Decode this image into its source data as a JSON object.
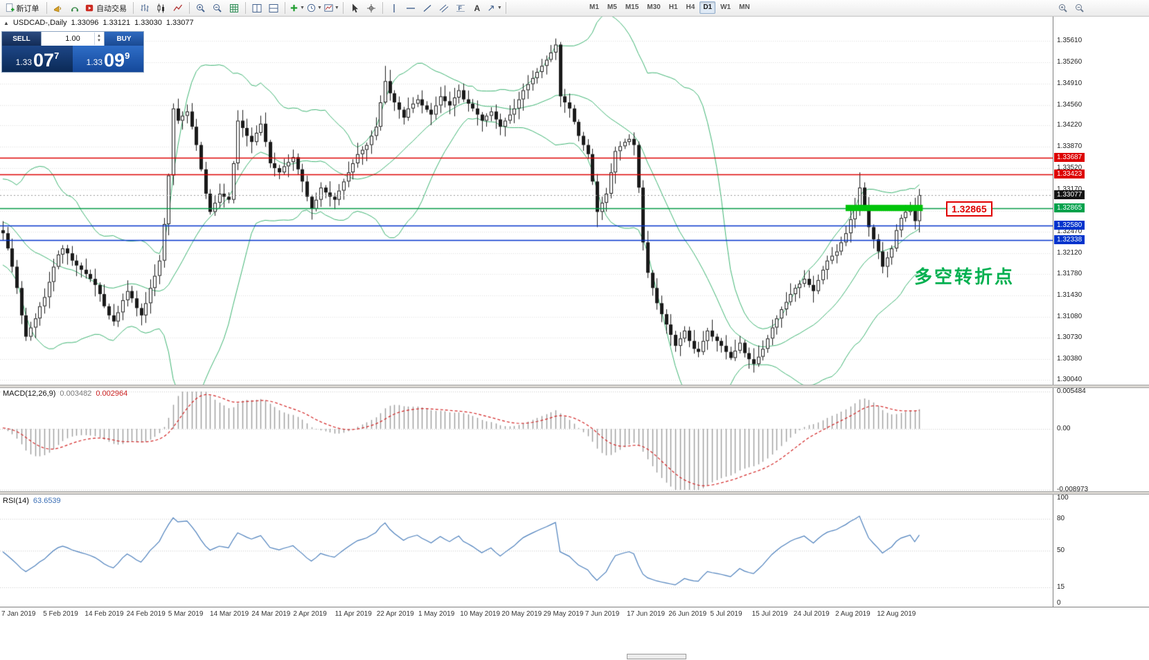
{
  "toolbar": {
    "new_order": "新订单",
    "autotrade": "自动交易",
    "timeframes": [
      "M1",
      "M5",
      "M15",
      "M30",
      "H1",
      "H4",
      "D1",
      "W1",
      "MN"
    ],
    "active_timeframe": "D1",
    "icon_names": [
      "new-order-icon",
      "megaphone-icon",
      "headset-icon",
      "autotrade-icon",
      "chart-bars-icon",
      "chart-candles-icon",
      "chart-line-icon",
      "zoom-in-icon",
      "zoom-out-icon",
      "grid-icon",
      "tile-horizontal-icon",
      "tile-vertical-icon",
      "add-indicator-icon",
      "periods-icon",
      "templates-icon",
      "cursor-icon",
      "crosshair-icon",
      "vertical-line-icon",
      "horizontal-line-icon",
      "trendline-icon",
      "channel-icon",
      "fibonacci-icon",
      "text-tool-icon",
      "arrows-tool-icon",
      "chart-zoom-in-icon",
      "chart-zoom-out-icon"
    ]
  },
  "chart": {
    "symbol_title": "USDCAD-,Daily",
    "open": "1.33096",
    "high": "1.33121",
    "low": "1.33030",
    "close": "1.33077"
  },
  "trade_panel": {
    "sell_label": "SELL",
    "buy_label": "BUY",
    "volume": "1.00",
    "sell_price_prefix": "1.33",
    "sell_price_big": "07",
    "sell_price_sup": "7",
    "buy_price_prefix": "1.33",
    "buy_price_big": "09",
    "buy_price_sup": "9"
  },
  "price_axis": {
    "gridline_labels": [
      "1.35610",
      "1.35260",
      "1.34910",
      "1.34560",
      "1.34220",
      "1.33870",
      "1.33520",
      "1.33170",
      "1.32820",
      "1.32470",
      "1.32120",
      "1.31780",
      "1.31430",
      "1.31080",
      "1.30730",
      "1.30380",
      "1.30040"
    ],
    "tags": [
      {
        "text": "1.33687",
        "bg": "#dd0000"
      },
      {
        "text": "1.33423",
        "bg": "#dd0000"
      },
      {
        "text": "1.33077",
        "bg": "#141414"
      },
      {
        "text": "1.32865",
        "bg": "#00a14b"
      },
      {
        "text": "1.32580",
        "bg": "#0033cc"
      },
      {
        "text": "1.32338",
        "bg": "#0033cc"
      }
    ]
  },
  "macd_panel": {
    "title": "MACD(12,26,9)",
    "main_value": "0.003482",
    "signal_value": "0.002964",
    "axis_labels": [
      "0.005484",
      "0.00",
      "-0.008973"
    ]
  },
  "rsi_panel": {
    "title": "RSI(14)",
    "value": "63.6539",
    "axis_labels": [
      "100",
      "80",
      "50",
      "15",
      "0"
    ]
  },
  "time_axis": {
    "labels": [
      "7 Jan 2019",
      "5 Feb 2019",
      "14 Feb 2019",
      "24 Feb 2019",
      "5 Mar 2019",
      "14 Mar 2019",
      "24 Mar 2019",
      "2 Apr 2019",
      "11 Apr 2019",
      "22 Apr 2019",
      "1 May 2019",
      "10 May 2019",
      "20 May 2019",
      "29 May 2019",
      "7 Jun 2019",
      "17 Jun 2019",
      "26 Jun 2019",
      "5 Jul 2019",
      "15 Jul 2019",
      "24 Jul 2019",
      "2 Aug 2019",
      "12 Aug 2019"
    ]
  },
  "annotations": {
    "turning_point": "多空转折点",
    "level_label": "1.32865"
  },
  "chart_data": {
    "type": "candlestick",
    "symbol": "USDCAD",
    "timeframe": "Daily",
    "visible_range": {
      "start": "7 Jan 2019",
      "end": "12 Aug 2019"
    },
    "price_axis_range": {
      "top": 1.3601,
      "bottom": 1.2995
    },
    "prehistory_closes": [
      1.325,
      1.328,
      1.331,
      1.333,
      1.33,
      1.327,
      1.324,
      1.321,
      1.319,
      1.322,
      1.325,
      1.3285,
      1.3315,
      1.329,
      1.326,
      1.323,
      1.3255,
      1.328,
      1.326,
      1.325
    ],
    "closes": [
      1.3245,
      1.322,
      1.319,
      1.3155,
      1.311,
      1.3075,
      1.309,
      1.3105,
      1.3125,
      1.314,
      1.3165,
      1.319,
      1.321,
      1.322,
      1.3212,
      1.32,
      1.3192,
      1.3185,
      1.3178,
      1.317,
      1.316,
      1.3145,
      1.3125,
      1.311,
      1.31,
      1.3115,
      1.3135,
      1.315,
      1.3138,
      1.3122,
      1.311,
      1.313,
      1.3155,
      1.3175,
      1.32,
      1.326,
      1.334,
      1.345,
      1.343,
      1.3438,
      1.3445,
      1.342,
      1.339,
      1.335,
      1.331,
      1.328,
      1.3295,
      1.331,
      1.3305,
      1.33,
      1.336,
      1.343,
      1.3418,
      1.3405,
      1.3395,
      1.341,
      1.3425,
      1.3395,
      1.336,
      1.3352,
      1.3345,
      1.3355,
      1.3362,
      1.337,
      1.335,
      1.333,
      1.3305,
      1.3285,
      1.33,
      1.332,
      1.3312,
      1.3305,
      1.33,
      1.3315,
      1.333,
      1.3345,
      1.336,
      1.3375,
      1.3382,
      1.339,
      1.3405,
      1.342,
      1.346,
      1.3495,
      1.3475,
      1.346,
      1.3448,
      1.3435,
      1.345,
      1.3458,
      1.3465,
      1.3455,
      1.3448,
      1.344,
      1.3455,
      1.347,
      1.3462,
      1.3455,
      1.3468,
      1.348,
      1.3465,
      1.3458,
      1.345,
      1.344,
      1.343,
      1.3438,
      1.3445,
      1.3432,
      1.342,
      1.343,
      1.344,
      1.345,
      1.3465,
      1.348,
      1.349,
      1.35,
      1.351,
      1.352,
      1.353,
      1.3542,
      1.3555,
      1.347,
      1.346,
      1.345,
      1.3428,
      1.3405,
      1.339,
      1.3375,
      1.333,
      1.328,
      1.3295,
      1.331,
      1.3345,
      1.338,
      1.3388,
      1.3395,
      1.34,
      1.339,
      1.332,
      1.323,
      1.318,
      1.3155,
      1.313,
      1.3112,
      1.3095,
      1.3078,
      1.306,
      1.3072,
      1.3085,
      1.3068,
      1.3055,
      1.305,
      1.3068,
      1.3085,
      1.3075,
      1.3068,
      1.306,
      1.305,
      1.304,
      1.3052,
      1.3065,
      1.3048,
      1.3038,
      1.303,
      1.3042,
      1.3055,
      1.3072,
      1.309,
      1.3105,
      1.312,
      1.3132,
      1.3145,
      1.3155,
      1.3162,
      1.317,
      1.316,
      1.315,
      1.3168,
      1.3185,
      1.32,
      1.3208,
      1.3215,
      1.323,
      1.3245,
      1.3268,
      1.329,
      1.332,
      1.329,
      1.3255,
      1.3235,
      1.3215,
      1.319,
      1.3205,
      1.322,
      1.325,
      1.327,
      1.328,
      1.329,
      1.3265,
      1.33077
    ],
    "wick_overrides": {
      "5": {
        "low": 1.3068
      },
      "83": {
        "high": 1.352
      },
      "120": {
        "high": 1.3565
      },
      "129": {
        "low": 1.3255
      },
      "163": {
        "low": 1.3016
      },
      "186": {
        "high": 1.3345
      }
    },
    "horizontal_levels": [
      {
        "price": 1.33687,
        "color": "#dd0000",
        "style": "solid",
        "width": 1.4
      },
      {
        "price": 1.33423,
        "color": "#dd0000",
        "style": "solid",
        "width": 1.4
      },
      {
        "price": 1.32865,
        "color": "#009944",
        "style": "solid",
        "width": 1.6
      },
      {
        "price": 1.3258,
        "color": "#0033cc",
        "style": "solid",
        "width": 1.4
      },
      {
        "price": 1.32338,
        "color": "#0033cc",
        "style": "solid",
        "width": 1.4
      },
      {
        "price": 1.33077,
        "color": "#9a9a9a",
        "style": "dotted",
        "width": 1
      }
    ],
    "highlight_segment": {
      "price": 1.32865,
      "from_bar": 183,
      "to_bar": 199,
      "color": "#00c40a",
      "thickness": 9
    },
    "indicators": [
      {
        "name": "Bollinger Bands",
        "period": 20,
        "deviation": 2,
        "color": "#3cb371"
      },
      {
        "name": "MACD",
        "fast": 12,
        "slow": 26,
        "signal": 9,
        "histogram_color": "#9a9a9a",
        "signal_color": "#d22222",
        "last_values": [
          0.003482,
          0.002964
        ],
        "axis_range": [
          -0.008973,
          0.005484
        ]
      },
      {
        "name": "RSI",
        "period": 14,
        "color": "#4a7ebb",
        "last_value": 63.6539,
        "axis_range": [
          0,
          100
        ],
        "levels": [
          15,
          50,
          80
        ]
      }
    ]
  }
}
